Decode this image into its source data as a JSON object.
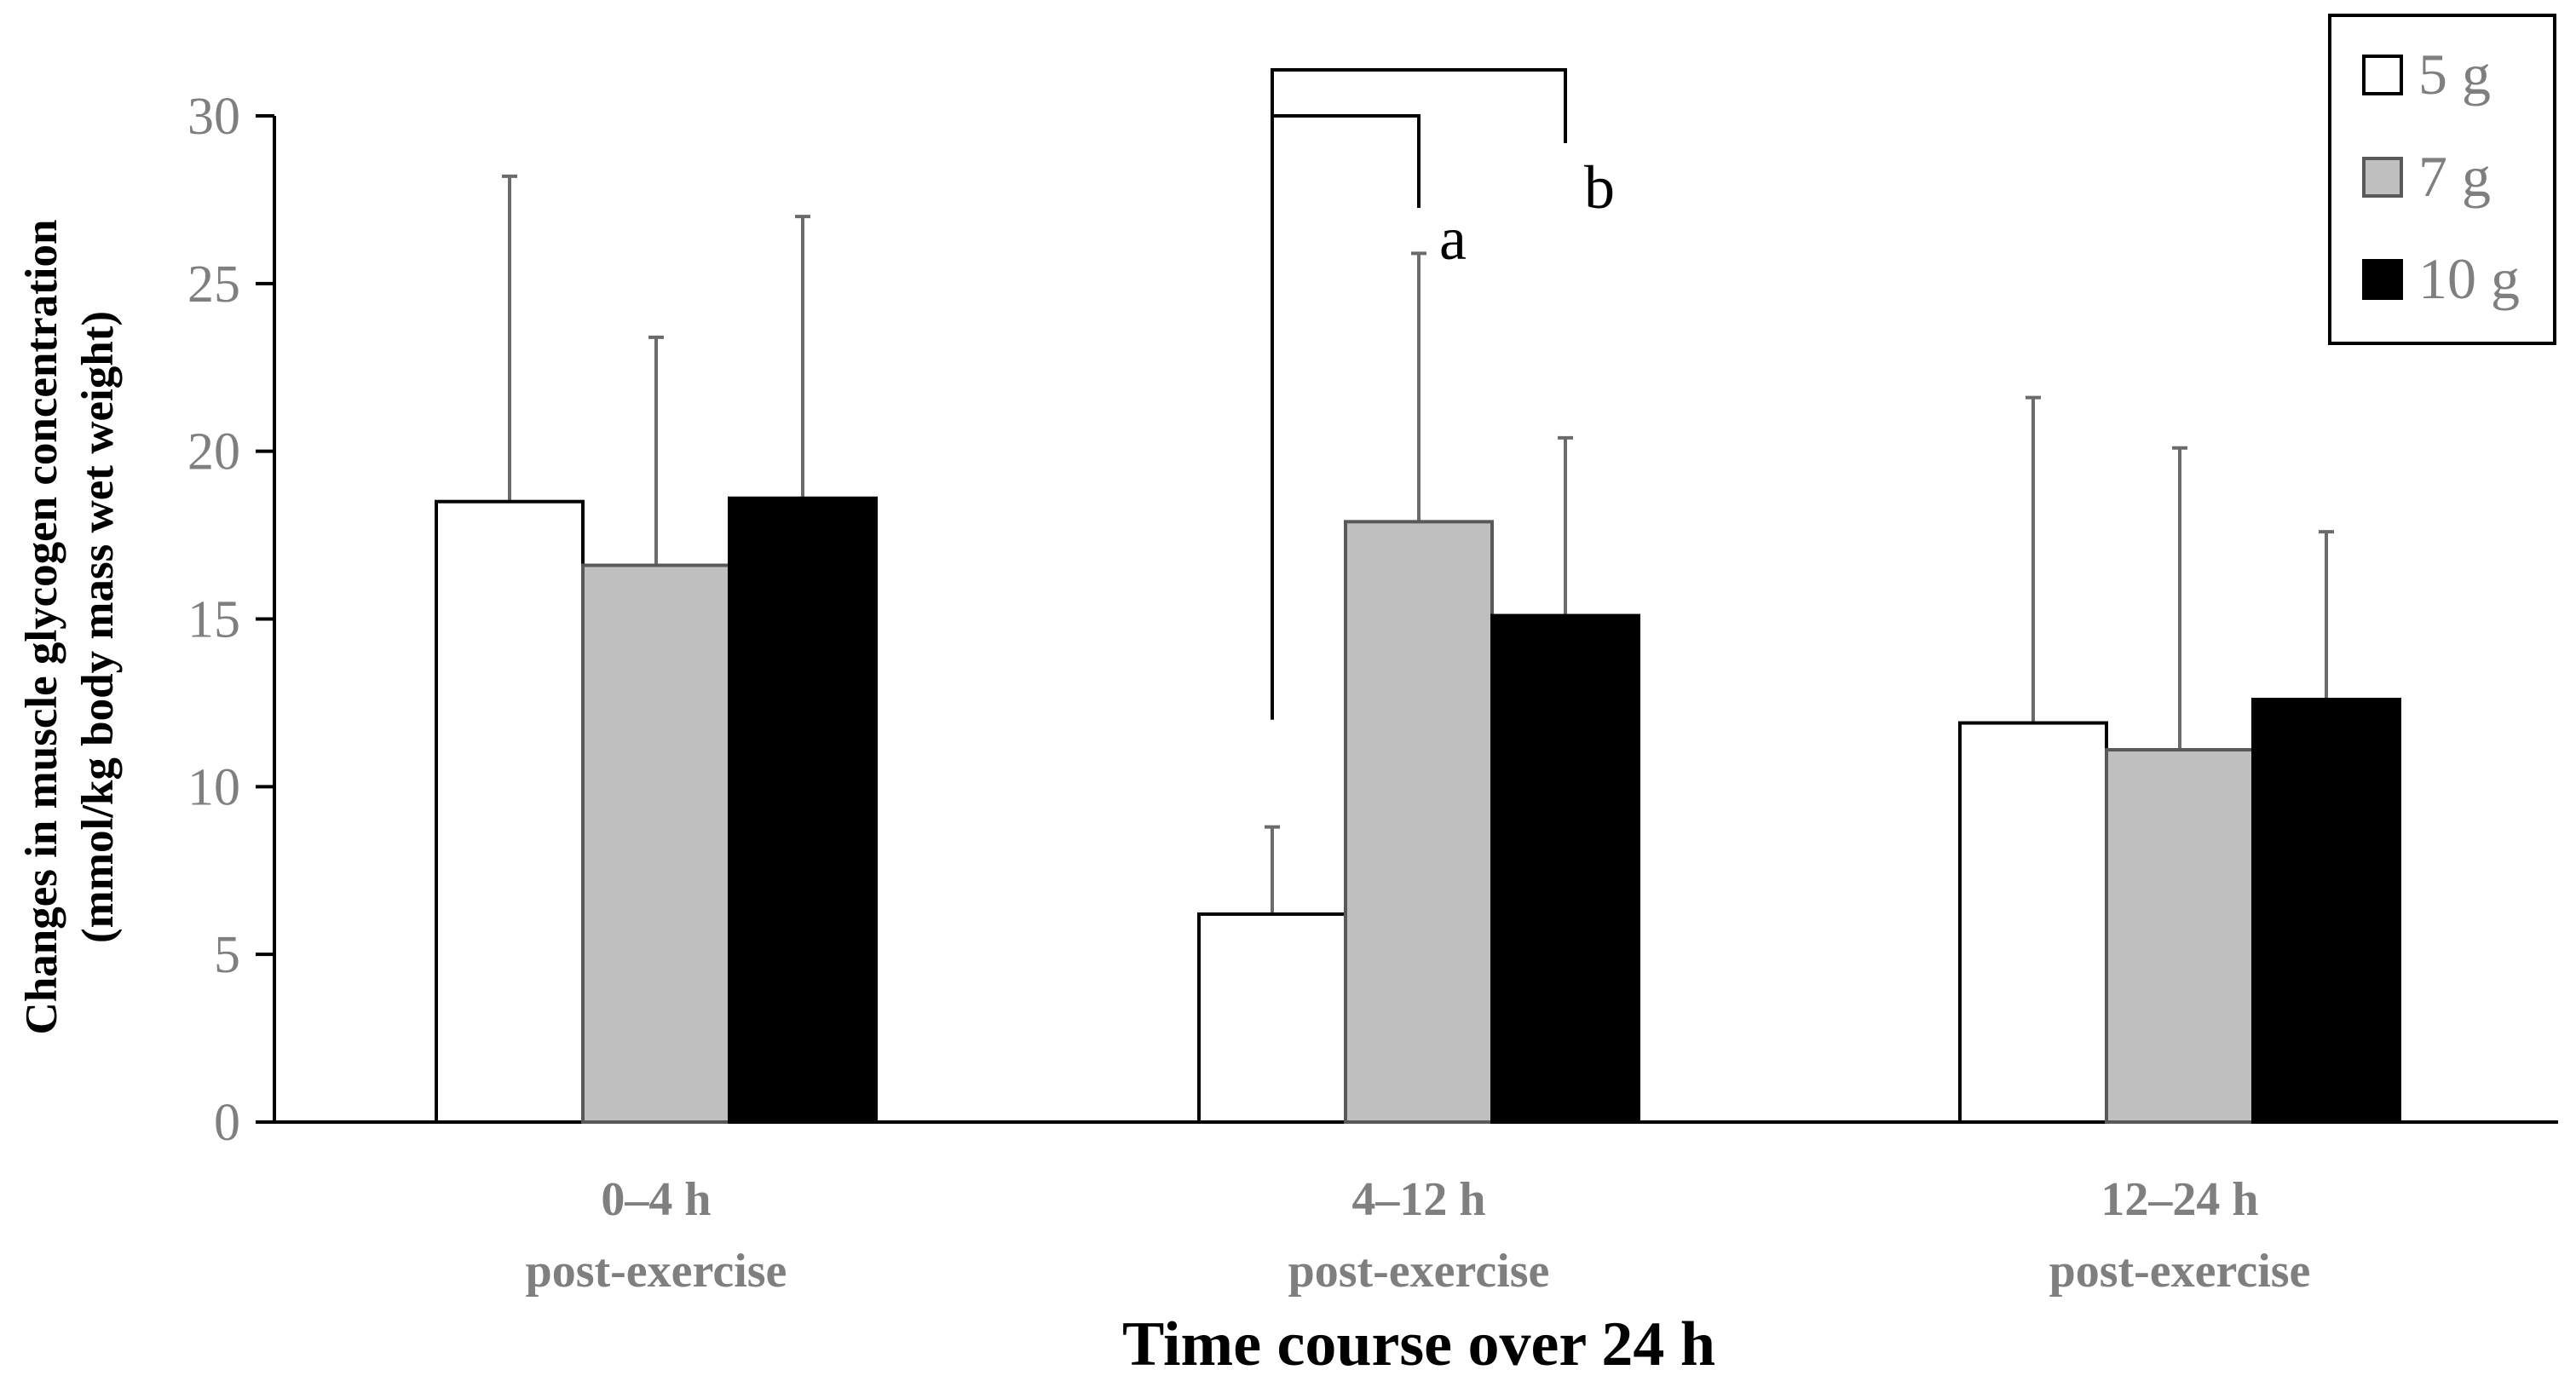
{
  "chart_data": {
    "type": "bar",
    "title": "",
    "xlabel": "Time course over 24 h",
    "ylabel": [
      "Changes in muscle glycogen concentration",
      "(mmol/kg body mass wet weight)"
    ],
    "ylim": [
      0,
      30
    ],
    "yticks": [
      "0",
      "5",
      "10",
      "15",
      "20",
      "25",
      "30"
    ],
    "categories": [
      {
        "line1": "0–4 h",
        "line2": "post-exercise"
      },
      {
        "line1": "4–12 h",
        "line2": "post-exercise"
      },
      {
        "line1": "12–24 h",
        "line2": "post-exercise"
      }
    ],
    "series": [
      {
        "name": "5 g",
        "color": "#ffffff",
        "values": [
          18.5,
          6.2,
          11.9
        ],
        "errors": [
          9.7,
          2.6,
          9.7
        ]
      },
      {
        "name": "7 g",
        "color": "#bfbfbf",
        "values": [
          16.6,
          17.9,
          11.1
        ],
        "errors": [
          6.8,
          8.0,
          9.0
        ]
      },
      {
        "name": "10 g",
        "color": "#000000",
        "values": [
          18.6,
          15.1,
          12.6
        ],
        "errors": [
          8.4,
          5.3,
          5.0
        ]
      }
    ],
    "legend": "top-right",
    "annotations": [
      {
        "label": "a",
        "category": 1,
        "from_series": 0,
        "to_series": 1
      },
      {
        "label": "b",
        "category": 1,
        "from_series": 0,
        "to_series": 2
      }
    ]
  }
}
